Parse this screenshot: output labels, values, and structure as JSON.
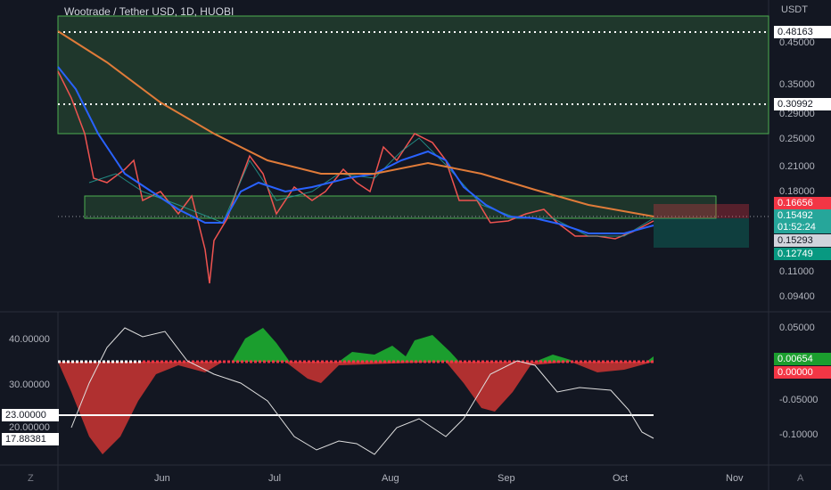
{
  "header": {
    "title": "Wootrade / Tether USD, 1D, HUOBI",
    "currency": "USDT"
  },
  "price_axis": {
    "labels": [
      "0.45000",
      "0.35000",
      "0.29000",
      "0.25000",
      "0.21000",
      "0.18000",
      "0.11000",
      "0.09400"
    ],
    "badges": [
      "0.48163",
      "0.30992",
      "0.16656",
      "0.15492",
      "01:52:24",
      "0.15293",
      "0.12749"
    ]
  },
  "indicator_right_axis": {
    "labels": [
      "0.05000",
      "-0.05000",
      "-0.10000"
    ],
    "badges": [
      "0.00654",
      "0.00000"
    ]
  },
  "indicator_left_axis": {
    "labels": [
      "40.00000",
      "30.00000",
      "20.00000"
    ],
    "badges": [
      "23.00000",
      "17.88381"
    ]
  },
  "time_axis": {
    "labels": [
      "Jun",
      "Jul",
      "Aug",
      "Sep",
      "Oct",
      "Nov"
    ]
  },
  "corners": {
    "left": "Z",
    "right": "A"
  }
}
